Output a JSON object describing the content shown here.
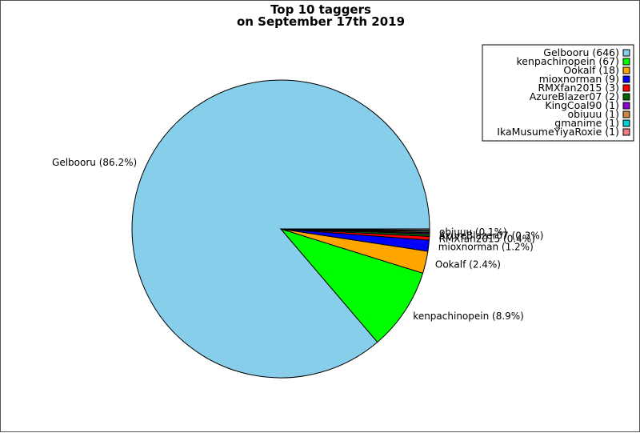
{
  "chart_data": {
    "type": "pie",
    "title_line1": "Top 10 taggers",
    "title_line2": "on September 17th 2019",
    "legend_position": "top-right",
    "slices": [
      {
        "name": "Gelbooru",
        "value": 646,
        "percent_label": "Gelbooru (86.2%)",
        "legend_label": "Gelbooru (646)",
        "color": "#87ceeb"
      },
      {
        "name": "kenpachinopein",
        "value": 67,
        "percent_label": "kenpachinopein (8.9%)",
        "legend_label": "kenpachinopein (67)",
        "color": "#00ff00"
      },
      {
        "name": "Ookalf",
        "value": 18,
        "percent_label": "Ookalf (2.4%)",
        "legend_label": "Ookalf (18)",
        "color": "#ffa500"
      },
      {
        "name": "mioxnorman",
        "value": 9,
        "percent_label": "mioxnorman (1.2%)",
        "legend_label": "mioxnorman (9)",
        "color": "#0000ff"
      },
      {
        "name": "RMXfan2015",
        "value": 3,
        "percent_label": "RMXfan2015 (0.4%)",
        "legend_label": "RMXfan2015 (3)",
        "color": "#ff0000"
      },
      {
        "name": "AzureBlazer07",
        "value": 2,
        "percent_label": "AzureBlazer07 (0.3%)",
        "legend_label": "AzureBlazer07 (2)",
        "color": "#006400"
      },
      {
        "name": "KingCoal90",
        "value": 1,
        "percent_label": "KingCoal90 (0.1%)",
        "legend_label": "KingCoal90 (1)",
        "color": "#9400d3"
      },
      {
        "name": "obiuuu",
        "value": 1,
        "percent_label": "obiuuu (0.1%)",
        "legend_label": "obiuuu (1)",
        "color": "#cd853f"
      },
      {
        "name": "gmanime",
        "value": 1,
        "percent_label": "gmanime (0.1%)",
        "legend_label": "gmanime (1)",
        "color": "#00ced1"
      },
      {
        "name": "IkaMusumeYiyaRoxie",
        "value": 1,
        "percent_label": "IkaMusumeYiyaRoxie (0.1%)",
        "legend_label": "IkaMusumeYiyaRoxie (1)",
        "color": "#f08080"
      }
    ]
  }
}
